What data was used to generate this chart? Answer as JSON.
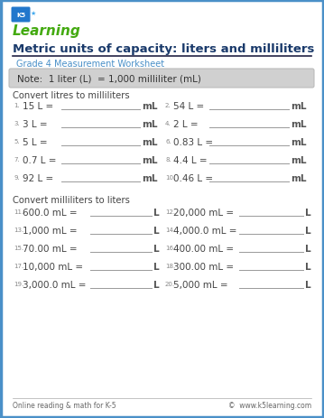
{
  "title": "Metric units of capacity: liters and milliliters",
  "subtitle": "Grade 4 Measurement Worksheet",
  "note": "Note:  1 liter (L)  = 1,000 milliliter (mL)",
  "section1_label": "Convert litres to milliliters",
  "section2_label": "Convert milliliters to liters",
  "col1_problems": [
    {
      "num": "1.",
      "expr": "15 L =",
      "unit": "mL"
    },
    {
      "num": "3.",
      "expr": "3 L =",
      "unit": "mL"
    },
    {
      "num": "5.",
      "expr": "5 L =",
      "unit": "mL"
    },
    {
      "num": "7.",
      "expr": "0.7 L =",
      "unit": "mL"
    },
    {
      "num": "9.",
      "expr": "92 L =",
      "unit": "mL"
    }
  ],
  "col2_problems": [
    {
      "num": "2.",
      "expr": "54 L =",
      "unit": "mL"
    },
    {
      "num": "4.",
      "expr": "2 L =",
      "unit": "mL"
    },
    {
      "num": "6.",
      "expr": "0.83 L =",
      "unit": "mL"
    },
    {
      "num": "8.",
      "expr": "4.4 L =",
      "unit": "mL"
    },
    {
      "num": "10.",
      "expr": "0.46 L =",
      "unit": "mL"
    }
  ],
  "col3_problems": [
    {
      "num": "11.",
      "expr": "600.0 mL =",
      "unit": "L"
    },
    {
      "num": "13.",
      "expr": "1,000 mL =",
      "unit": "L"
    },
    {
      "num": "15.",
      "expr": "70.00 mL =",
      "unit": "L"
    },
    {
      "num": "17.",
      "expr": "10,000 mL =",
      "unit": "L"
    },
    {
      "num": "19.",
      "expr": "3,000.0 mL =",
      "unit": "L"
    }
  ],
  "col4_problems": [
    {
      "num": "12.",
      "expr": "20,000 mL =",
      "unit": "L"
    },
    {
      "num": "14.",
      "expr": "4,000.0 mL =",
      "unit": "L"
    },
    {
      "num": "16.",
      "expr": "400.00 mL =",
      "unit": "L"
    },
    {
      "num": "18.",
      "expr": "300.00 mL =",
      "unit": "L"
    },
    {
      "num": "20.",
      "expr": "5,000 mL =",
      "unit": "L"
    }
  ],
  "footer_left": "Online reading & math for K-5",
  "footer_right": "©  www.k5learning.com",
  "border_color": "#4a90c8",
  "title_color": "#1a3a6b",
  "subtitle_color": "#4a90c8",
  "note_bg_color": "#d0d0d0",
  "note_text_color": "#333333",
  "section_label_color": "#444444",
  "problem_num_color": "#888888",
  "problem_color": "#444444",
  "unit_color": "#555555",
  "line_color": "#999999",
  "footer_color": "#666666",
  "bg_color": "#ffffff"
}
